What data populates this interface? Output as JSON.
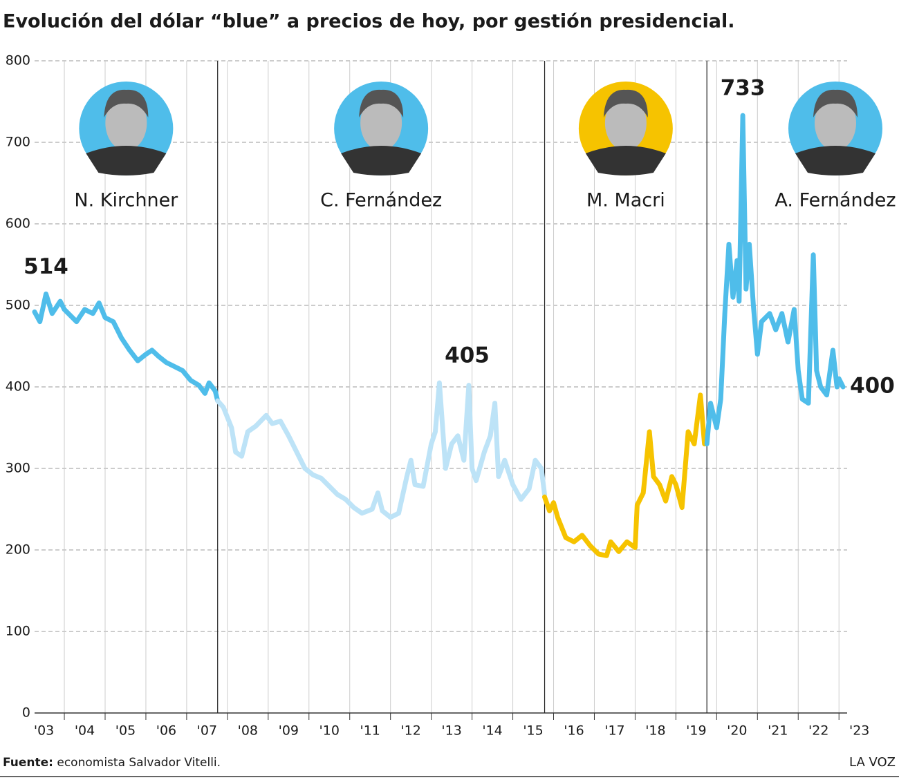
{
  "chart_data": {
    "type": "line",
    "title": "Evolución del dólar “blue” a precios de hoy, por gestión presidencial.",
    "xlim": [
      2003.27,
      2023.2
    ],
    "ylim": [
      0,
      800
    ],
    "yticks": [
      0,
      100,
      200,
      300,
      400,
      500,
      600,
      700,
      800
    ],
    "xticks": [
      {
        "value": 2003,
        "label": "'03"
      },
      {
        "value": 2004,
        "label": "'04"
      },
      {
        "value": 2005,
        "label": "'05"
      },
      {
        "value": 2006,
        "label": "'06"
      },
      {
        "value": 2007,
        "label": "'07"
      },
      {
        "value": 2008,
        "label": "'08"
      },
      {
        "value": 2009,
        "label": "'09"
      },
      {
        "value": 2010,
        "label": "'10"
      },
      {
        "value": 2011,
        "label": "'11"
      },
      {
        "value": 2012,
        "label": "'12"
      },
      {
        "value": 2013,
        "label": "'13"
      },
      {
        "value": 2014,
        "label": "'14"
      },
      {
        "value": 2015,
        "label": "'15"
      },
      {
        "value": 2016,
        "label": "'16"
      },
      {
        "value": 2017,
        "label": "'17"
      },
      {
        "value": 2018,
        "label": "'18"
      },
      {
        "value": 2019,
        "label": "'19"
      },
      {
        "value": 2020,
        "label": "'20"
      },
      {
        "value": 2021,
        "label": "'21"
      },
      {
        "value": 2022,
        "label": "'22"
      },
      {
        "value": 2023,
        "label": "'23"
      }
    ],
    "grid": true,
    "series": [
      {
        "name": "N. Kirchner",
        "color": "#4fbdea",
        "x": [
          2003.27,
          2003.4,
          2003.55,
          2003.7,
          2003.9,
          2004.0,
          2004.3,
          2004.5,
          2004.7,
          2004.85,
          2005.0,
          2005.2,
          2005.4,
          2005.6,
          2005.8,
          2006.0,
          2006.15,
          2006.3,
          2006.5,
          2006.7,
          2006.9,
          2007.1,
          2007.3,
          2007.45,
          2007.55,
          2007.7,
          2007.76
        ],
        "values": [
          492,
          480,
          514,
          490,
          505,
          495,
          480,
          495,
          490,
          503,
          485,
          480,
          460,
          445,
          432,
          440,
          445,
          438,
          430,
          425,
          420,
          408,
          402,
          392,
          405,
          395,
          383
        ]
      },
      {
        "name": "C. Fernández",
        "color": "#bde3f7",
        "x": [
          2007.76,
          2007.9,
          2008.1,
          2008.2,
          2008.35,
          2008.5,
          2008.7,
          2008.95,
          2009.1,
          2009.3,
          2009.5,
          2009.7,
          2009.9,
          2010.1,
          2010.3,
          2010.5,
          2010.7,
          2010.9,
          2011.1,
          2011.3,
          2011.55,
          2011.69,
          2011.8,
          2012.0,
          2012.2,
          2012.4,
          2012.5,
          2012.6,
          2012.8,
          2013.0,
          2013.1,
          2013.2,
          2013.35,
          2013.5,
          2013.65,
          2013.8,
          2013.92,
          2014.0,
          2014.1,
          2014.3,
          2014.45,
          2014.56,
          2014.65,
          2014.8,
          2015.0,
          2015.2,
          2015.4,
          2015.55,
          2015.7,
          2015.78
        ],
        "values": [
          383,
          375,
          350,
          320,
          315,
          345,
          352,
          365,
          355,
          358,
          340,
          320,
          300,
          292,
          288,
          278,
          268,
          262,
          252,
          245,
          250,
          270,
          248,
          240,
          245,
          290,
          310,
          280,
          278,
          330,
          345,
          405,
          300,
          330,
          340,
          310,
          402,
          300,
          285,
          320,
          340,
          380,
          290,
          310,
          280,
          262,
          275,
          310,
          300,
          268
        ]
      },
      {
        "name": "M. Macri",
        "color": "#f6c300",
        "x": [
          2015.78,
          2015.9,
          2016.0,
          2016.1,
          2016.3,
          2016.5,
          2016.7,
          2016.9,
          2017.1,
          2017.3,
          2017.4,
          2017.6,
          2017.8,
          2018.0,
          2018.05,
          2018.2,
          2018.35,
          2018.45,
          2018.6,
          2018.75,
          2018.9,
          2019.0,
          2019.15,
          2019.3,
          2019.45,
          2019.6,
          2019.7,
          2019.76
        ],
        "values": [
          265,
          248,
          258,
          240,
          215,
          210,
          218,
          205,
          195,
          193,
          210,
          198,
          210,
          203,
          255,
          270,
          345,
          290,
          280,
          260,
          290,
          280,
          252,
          345,
          330,
          390,
          330,
          340
        ]
      },
      {
        "name": "A. Fernández",
        "color": "#4fbdea",
        "x": [
          2019.76,
          2019.85,
          2020.0,
          2020.1,
          2020.2,
          2020.3,
          2020.4,
          2020.5,
          2020.55,
          2020.64,
          2020.72,
          2020.8,
          2020.9,
          2021.0,
          2021.1,
          2021.3,
          2021.45,
          2021.6,
          2021.75,
          2021.9,
          2022.0,
          2022.1,
          2022.25,
          2022.37,
          2022.45,
          2022.55,
          2022.7,
          2022.85,
          2022.95,
          2023.0,
          2023.1
        ],
        "values": [
          330,
          380,
          350,
          385,
          490,
          575,
          510,
          555,
          505,
          733,
          520,
          575,
          500,
          440,
          480,
          490,
          470,
          490,
          455,
          495,
          420,
          385,
          380,
          562,
          420,
          400,
          390,
          445,
          400,
          410,
          400
        ]
      }
    ],
    "annotations": [
      {
        "x": 2003.55,
        "value": 514
      },
      {
        "x": 2013.88,
        "value": 405
      },
      {
        "x": 2020.64,
        "value": 733
      },
      {
        "x": 2023.1,
        "value": 400
      }
    ],
    "source_label": "Fuente:",
    "source_text": "economista Salvador Vitelli.",
    "brand": "LA VOZ"
  }
}
